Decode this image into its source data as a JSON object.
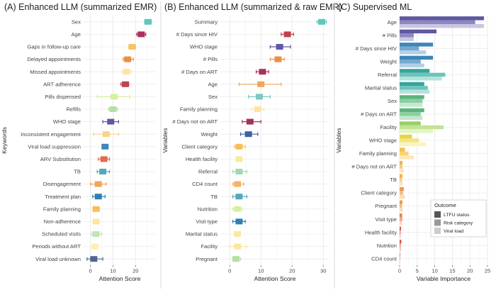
{
  "chart_data": [
    {
      "type": "errorbar",
      "title": "(A) Enhanced LLM (summarized EMR)",
      "xlabel": "Attention Score",
      "ylabel": "Keywords",
      "xlim": [
        -3,
        29
      ],
      "xticks": [
        0,
        10,
        20
      ],
      "grid": true,
      "items": [
        {
          "label": "Sex",
          "value": 25.5,
          "low": 24,
          "high": 27,
          "color": "#5fc7be"
        },
        {
          "label": "Age",
          "value": 22.5,
          "low": 20.5,
          "high": 24.5,
          "color": "#a8305a"
        },
        {
          "label": "Gaps in follow-up care",
          "value": 18.5,
          "low": 17,
          "high": 20,
          "color": "#f7c461"
        },
        {
          "label": "Delayed appointments",
          "value": 16.5,
          "low": 14.5,
          "high": 19,
          "color": "#ed8e3f"
        },
        {
          "label": "Missed appointments",
          "value": 16,
          "low": 14,
          "high": 18,
          "color": "#fde4a1"
        },
        {
          "label": "ART adherence",
          "value": 15.5,
          "low": 13.5,
          "high": 17,
          "color": "#c1424f"
        },
        {
          "label": "Pills dispensed",
          "value": 10.5,
          "low": 3,
          "high": 17.5,
          "color": "#d7ef9f"
        },
        {
          "label": "Refills",
          "value": 10,
          "low": 8,
          "high": 12,
          "color": "#b4e0a3"
        },
        {
          "label": "WHO stage",
          "value": 9,
          "low": 5.5,
          "high": 12.5,
          "color": "#5e58a2"
        },
        {
          "label": "Inconsistent engagement",
          "value": 7,
          "low": 1.5,
          "high": 12.5,
          "color": "#f8d486"
        },
        {
          "label": "Viral load suppression",
          "value": 6.5,
          "low": 5.5,
          "high": 7.5,
          "color": "#3d86b6"
        },
        {
          "label": "ARV Substitution",
          "value": 6,
          "low": 3.5,
          "high": 8.5,
          "color": "#e06a4e"
        },
        {
          "label": "TB",
          "value": 5.5,
          "low": 3,
          "high": 8.5,
          "color": "#52a8bc"
        },
        {
          "label": "Disengagement",
          "value": 3.5,
          "low": 0,
          "high": 7,
          "color": "#f0a55a"
        },
        {
          "label": "Treatment plan",
          "value": 3.5,
          "low": 1,
          "high": 6.5,
          "color": "#2f7fb2"
        },
        {
          "label": "Family planning",
          "value": 2.5,
          "low": 1.5,
          "high": 4,
          "color": "#f7be59"
        },
        {
          "label": "Non-adherence",
          "value": 2.5,
          "low": 2,
          "high": 3,
          "color": "#fbe89e"
        },
        {
          "label": "Scheduled visits",
          "value": 2.5,
          "low": 0.5,
          "high": 5,
          "color": "#bfe6b3"
        },
        {
          "label": "Periods without ART",
          "value": 2,
          "low": 1.5,
          "high": 2.5,
          "color": "#fff0b0"
        },
        {
          "label": "Viral load unknown",
          "value": 1.5,
          "low": -1.5,
          "high": 5.5,
          "color": "#51648f"
        }
      ]
    },
    {
      "type": "errorbar",
      "title": "(B) Enhanced LLM (summarized & raw EMR)",
      "xlabel": "Attention Score",
      "ylabel": "Variables",
      "xlim": [
        -3,
        32
      ],
      "xticks": [
        0,
        10,
        20,
        30
      ],
      "grid": true,
      "items": [
        {
          "label": "Summary",
          "value": 29.5,
          "low": 28,
          "high": 31,
          "color": "#5fc7be"
        },
        {
          "label": "# Days since HIV",
          "value": 18.5,
          "low": 16.5,
          "high": 20.5,
          "color": "#c1424f"
        },
        {
          "label": "WHO stage",
          "value": 16,
          "low": 13,
          "high": 19.5,
          "color": "#5e58a2"
        },
        {
          "label": "# Pills",
          "value": 15.5,
          "low": 13,
          "high": 17.5,
          "color": "#ed8e3f"
        },
        {
          "label": "# Days on ART",
          "value": 10.5,
          "low": 8.5,
          "high": 12.5,
          "color": "#a8305a"
        },
        {
          "label": "Age",
          "value": 10,
          "low": 3,
          "high": 16.5,
          "color": "#f0a55a"
        },
        {
          "label": "Sex",
          "value": 9.5,
          "low": 6,
          "high": 13,
          "color": "#7cc8bf"
        },
        {
          "label": "Family planning",
          "value": 9,
          "low": 7,
          "high": 11,
          "color": "#fde4a1"
        },
        {
          "label": "# Days not on ART",
          "value": 6.5,
          "low": 4,
          "high": 10,
          "color": "#a8305a"
        },
        {
          "label": "Weight",
          "value": 6,
          "low": 3.5,
          "high": 9,
          "color": "#3e5ea5"
        },
        {
          "label": "Client category",
          "value": 3,
          "low": 1.5,
          "high": 5,
          "color": "#f7be59"
        },
        {
          "label": "Health facility",
          "value": 3,
          "low": 2.5,
          "high": 3.5,
          "color": "#fbe89e"
        },
        {
          "label": "Referral",
          "value": 3,
          "low": 1,
          "high": 5.5,
          "color": "#9fd8b0"
        },
        {
          "label": "CD4 count",
          "value": 2.5,
          "low": 1,
          "high": 4.5,
          "color": "#f4b26a"
        },
        {
          "label": "TB",
          "value": 3,
          "low": 1,
          "high": 5.5,
          "color": "#52a8bc"
        },
        {
          "label": "Nutrition",
          "value": 2.5,
          "low": 1,
          "high": 4,
          "color": "#d7ef9f"
        },
        {
          "label": "Visit type",
          "value": 3,
          "low": 1,
          "high": 5,
          "color": "#2f7fb2"
        },
        {
          "label": "Marital status",
          "value": 2.5,
          "low": 2,
          "high": 3,
          "color": "#fbe89e"
        },
        {
          "label": "Facility",
          "value": 2.5,
          "low": 0,
          "high": 5.5,
          "color": "#fde4a1"
        },
        {
          "label": "Pregnant",
          "value": 2,
          "low": 1,
          "high": 3.5,
          "color": "#b4e0a3"
        }
      ]
    },
    {
      "type": "grouped_bar",
      "title": "(C) Supervised ML",
      "xlabel": "Variable Importance",
      "ylabel": "Variables",
      "xlim": [
        0,
        25
      ],
      "xticks": [
        0,
        5,
        10,
        15,
        20,
        25
      ],
      "grid": true,
      "series": [
        "LTFU status",
        "Risk category",
        "Viral load"
      ],
      "legend": {
        "title": "Outcome",
        "labels": [
          "LTFU status",
          "Risk category",
          "Viral load"
        ],
        "swatches": [
          "#555555",
          "#999999",
          "#cccccc"
        ],
        "position": "bottom-right"
      },
      "items": [
        {
          "label": "Age",
          "values": [
            24,
            21.5,
            24
          ],
          "colors": [
            "#5e58a2",
            "#8c87bf",
            "#c9c6e2"
          ]
        },
        {
          "label": "# Pills",
          "values": [
            10.5,
            4,
            4
          ],
          "colors": [
            "#5e58a2",
            "#8c87bf",
            "#c9c6e2"
          ]
        },
        {
          "label": "# Days since HIV",
          "values": [
            9.5,
            5.5,
            7.5
          ],
          "colors": [
            "#3d86b6",
            "#74a9cf",
            "#b4cfe5"
          ]
        },
        {
          "label": "Weight",
          "values": [
            9.5,
            6,
            7
          ],
          "colors": [
            "#3d86b6",
            "#74a9cf",
            "#b4cfe5"
          ]
        },
        {
          "label": "Referral",
          "values": [
            8.5,
            13,
            12
          ],
          "colors": [
            "#37a49a",
            "#6cc4ba",
            "#b4e2dc"
          ]
        },
        {
          "label": "Marital status",
          "values": [
            7,
            8,
            8.5
          ],
          "colors": [
            "#37a49a",
            "#6cc4ba",
            "#b4e2dc"
          ]
        },
        {
          "label": "Sex",
          "values": [
            7,
            6.5,
            6.5
          ],
          "colors": [
            "#5bb47c",
            "#8ad0a0",
            "#c4e8cc"
          ]
        },
        {
          "label": "# Days on ART",
          "values": [
            7,
            6,
            6.5
          ],
          "colors": [
            "#5bb47c",
            "#8ad0a0",
            "#c4e8cc"
          ]
        },
        {
          "label": "Facility",
          "values": [
            6,
            12.5,
            9.5
          ],
          "colors": [
            "#99cf6a",
            "#c2e394",
            "#e4f3c8"
          ]
        },
        {
          "label": "WHO stage",
          "values": [
            3.5,
            5.5,
            7.5
          ],
          "colors": [
            "#e7d447",
            "#f3e47e",
            "#fbf3bb"
          ]
        },
        {
          "label": "Family planning",
          "values": [
            1.5,
            2.5,
            4
          ],
          "colors": [
            "#f2c04a",
            "#f7d47e",
            "#fbe8b6"
          ]
        },
        {
          "label": "# Days not on ART",
          "values": [
            0.8,
            0.8,
            1.2
          ],
          "colors": [
            "#f2b24a",
            "#f6ca83",
            "#fae2bd"
          ]
        },
        {
          "label": "TB",
          "values": [
            0.8,
            0.7,
            0.9
          ],
          "colors": [
            "#f2b24a",
            "#f6ca83",
            "#fae2bd"
          ]
        },
        {
          "label": "Client category",
          "values": [
            1.2,
            1.0,
            1.5
          ],
          "colors": [
            "#ec9a4c",
            "#f3bb86",
            "#f9dcbf"
          ]
        },
        {
          "label": "Pregnant",
          "values": [
            0.8,
            0.7,
            0.9
          ],
          "colors": [
            "#ec9a4c",
            "#f3bb86",
            "#f9dcbf"
          ]
        },
        {
          "label": "Visit type",
          "values": [
            0.7,
            0.8,
            0.6
          ],
          "colors": [
            "#e98153",
            "#f1aa89",
            "#f8d4c2"
          ]
        },
        {
          "label": "Health facility",
          "values": [
            0.4,
            0.3,
            0.3
          ],
          "colors": [
            "#d8594a",
            "#e78f86",
            "#f3c6c1"
          ]
        },
        {
          "label": "Nutrition",
          "values": [
            0.5,
            0.3,
            0.4
          ],
          "colors": [
            "#d8594a",
            "#e78f86",
            "#f3c6c1"
          ]
        },
        {
          "label": "CD4 count",
          "values": [
            0.1,
            0.1,
            0.1
          ],
          "colors": [
            "#c1424f",
            "#d9828b",
            "#ecbfc4"
          ]
        }
      ]
    }
  ]
}
